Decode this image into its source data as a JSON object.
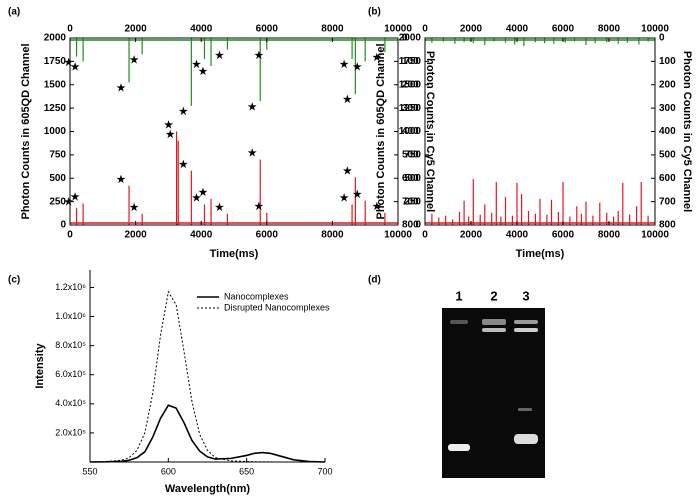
{
  "chart_data": [
    {
      "type": "spike",
      "panel_label": "(a)",
      "xlabel": "Time(ms)",
      "ylabel": "Photon Counts in 605QD Channel",
      "y2label": "Photon Counts in Cy5 Channel",
      "xlim": [
        0,
        10000
      ],
      "xticks": [
        0,
        2000,
        4000,
        6000,
        8000,
        10000
      ],
      "ylim": [
        0,
        2000
      ],
      "yticks": [
        0,
        250,
        500,
        750,
        1000,
        1250,
        1500,
        1750,
        2000
      ],
      "y2lim": [
        800,
        0
      ],
      "y2ticks": [
        0,
        100,
        200,
        300,
        400,
        500,
        600,
        700,
        800
      ],
      "markers": "star",
      "series": [
        {
          "color": "#e8141c",
          "x": [
            200,
            400,
            1800,
            2200,
            3250,
            3300,
            3700,
            4100,
            4300,
            4800,
            5800,
            6000,
            8600,
            8700,
            9000,
            9600
          ],
          "values": [
            180,
            230,
            420,
            120,
            1000,
            900,
            580,
            220,
            280,
            120,
            700,
            130,
            220,
            510,
            260,
            130
          ]
        },
        {
          "color": "#1a8f1a",
          "axis": "y2",
          "x": [
            200,
            400,
            1800,
            2200,
            3700,
            4100,
            4300,
            4800,
            5800,
            6000,
            8600,
            8700,
            9000,
            9600
          ],
          "values": [
            80,
            100,
            190,
            70,
            290,
            90,
            120,
            50,
            270,
            50,
            90,
            240,
            100,
            60
          ]
        }
      ]
    },
    {
      "type": "spike",
      "panel_label": "(b)",
      "xlabel": "Time(ms)",
      "ylabel": "Photon Counts in 605QD Channel",
      "y2label": "Photon Counts in Cy5 Channel",
      "xlim": [
        0,
        10000
      ],
      "xticks": [
        0,
        2000,
        4000,
        6000,
        8000,
        10000
      ],
      "ylim": [
        0,
        2000
      ],
      "yticks": [
        0,
        250,
        500,
        750,
        1000,
        1250,
        1500,
        1750,
        2000
      ],
      "y2lim": [
        800,
        0
      ],
      "y2ticks": [
        0,
        100,
        200,
        300,
        400,
        500,
        600,
        700,
        800
      ],
      "series": [
        {
          "color": "#e8141c",
          "x": [
            300,
            600,
            900,
            1200,
            1500,
            1700,
            1900,
            2100,
            2400,
            2600,
            2900,
            3100,
            3300,
            3500,
            3800,
            4000,
            4200,
            4500,
            4800,
            5000,
            5300,
            5500,
            5800,
            6000,
            6300,
            6600,
            6800,
            7000,
            7300,
            7600,
            7900,
            8200,
            8400,
            8600,
            8900,
            9200,
            9400,
            9700
          ],
          "values": [
            120,
            80,
            100,
            60,
            140,
            260,
            90,
            490,
            110,
            220,
            130,
            460,
            90,
            300,
            100,
            450,
            330,
            150,
            120,
            280,
            110,
            270,
            140,
            460,
            90,
            200,
            120,
            250,
            100,
            240,
            130,
            90,
            150,
            450,
            110,
            200,
            460,
            100
          ]
        },
        {
          "color": "#1a8f1a",
          "axis": "y2",
          "x": [
            300,
            800,
            1300,
            1700,
            2100,
            2600,
            3000,
            3500,
            3900,
            4300,
            4800,
            5200,
            5600,
            6100,
            6500,
            7000,
            7400,
            7900,
            8400,
            8800,
            9300,
            9700
          ],
          "values": [
            20,
            15,
            25,
            18,
            22,
            30,
            15,
            20,
            28,
            35,
            18,
            22,
            25,
            20,
            15,
            30,
            22,
            18,
            25,
            20,
            28,
            15
          ]
        }
      ]
    },
    {
      "type": "line",
      "panel_label": "(c)",
      "xlabel": "Wavelength(nm)",
      "ylabel": "Intensity",
      "xlim": [
        550,
        700
      ],
      "xticks": [
        550,
        600,
        650,
        700
      ],
      "ylim": [
        0,
        1320000
      ],
      "yticks": [
        {
          "value": 200000,
          "label": "2.0x10⁵"
        },
        {
          "value": 400000,
          "label": "4.0x10⁵"
        },
        {
          "value": 600000,
          "label": "6.0x10⁵"
        },
        {
          "value": 800000,
          "label": "8.0x10⁵"
        },
        {
          "value": 1000000,
          "label": "1.0x10⁶"
        },
        {
          "value": 1200000,
          "label": "1.2x10⁶"
        }
      ],
      "legend": "upper right",
      "x": [
        550,
        560,
        570,
        575,
        580,
        585,
        590,
        595,
        600,
        605,
        610,
        615,
        620,
        625,
        630,
        640,
        650,
        655,
        660,
        665,
        670,
        680,
        690,
        700
      ],
      "series": [
        {
          "name": "Nanocomplexes",
          "color": "#000000",
          "dash": "solid",
          "values": [
            0,
            1000,
            5000,
            12000,
            30000,
            70000,
            170000,
            300000,
            390000,
            370000,
            270000,
            150000,
            75000,
            35000,
            20000,
            25000,
            45000,
            60000,
            65000,
            60000,
            45000,
            15000,
            3000,
            0
          ]
        },
        {
          "name": "Disrupted Nanocomplexes",
          "color": "#000000",
          "dash": "dotted",
          "values": [
            0,
            2000,
            12000,
            30000,
            80000,
            200000,
            470000,
            870000,
            1170000,
            1080000,
            760000,
            420000,
            190000,
            80000,
            30000,
            8000,
            3000,
            1500,
            800,
            500,
            300,
            0,
            0,
            0
          ]
        }
      ]
    }
  ],
  "gel": {
    "panel_label": "(d)",
    "lanes": [
      "1",
      "2",
      "3"
    ]
  }
}
